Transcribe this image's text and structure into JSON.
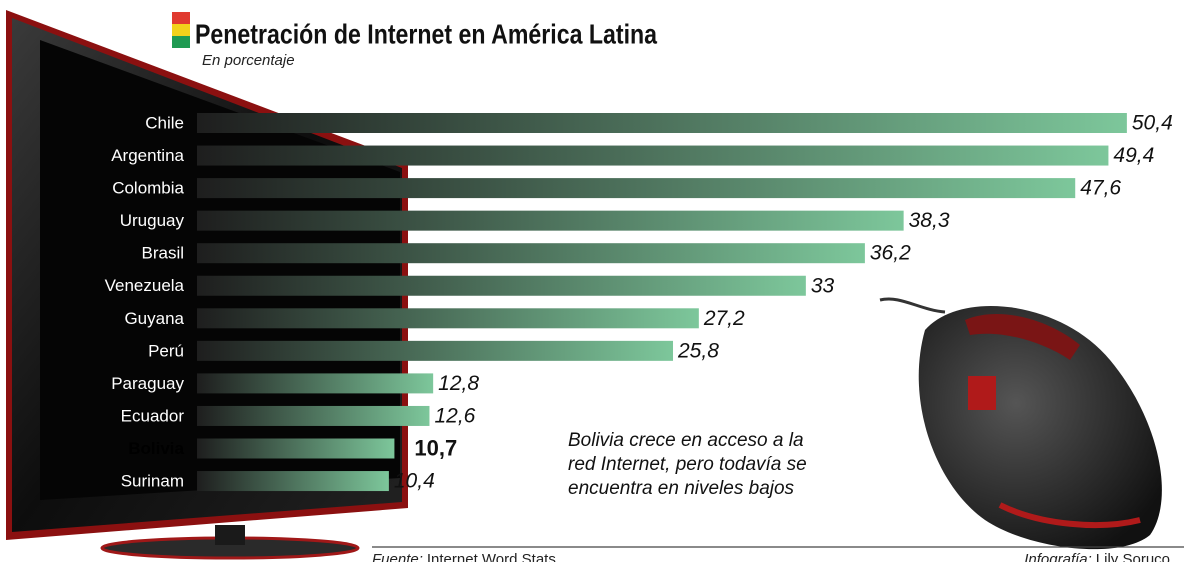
{
  "chart_data": {
    "type": "bar",
    "orientation": "horizontal",
    "title": "Penetración de Internet en América Latina",
    "subtitle": "En porcentaje",
    "categories": [
      "Chile",
      "Argentina",
      "Colombia",
      "Uruguay",
      "Brasil",
      "Venezuela",
      "Guyana",
      "Perú",
      "Paraguay",
      "Ecuador",
      "Bolivia",
      "Surinam"
    ],
    "values": [
      50.4,
      49.4,
      47.6,
      38.3,
      36.2,
      33,
      27.2,
      25.8,
      12.8,
      12.6,
      10.7,
      10.4
    ],
    "value_labels": [
      "50,4",
      "49,4",
      "47,6",
      "38,3",
      "36,2",
      "33",
      "27,2",
      "25,8",
      "12,8",
      "12,6",
      "10,7",
      "10,4"
    ],
    "highlight": "Bolivia",
    "color_start": "#1e1e1e",
    "color_end": "#7dc79b",
    "annotation": [
      "Bolivia crece en acceso a la",
      "red Internet, pero todavía se",
      "encuentra en niveles bajos"
    ],
    "source_label": "Fuente:",
    "source": "Internet Word Stats",
    "credit_label": "Infografía:",
    "credit": "Lily Soruco"
  }
}
